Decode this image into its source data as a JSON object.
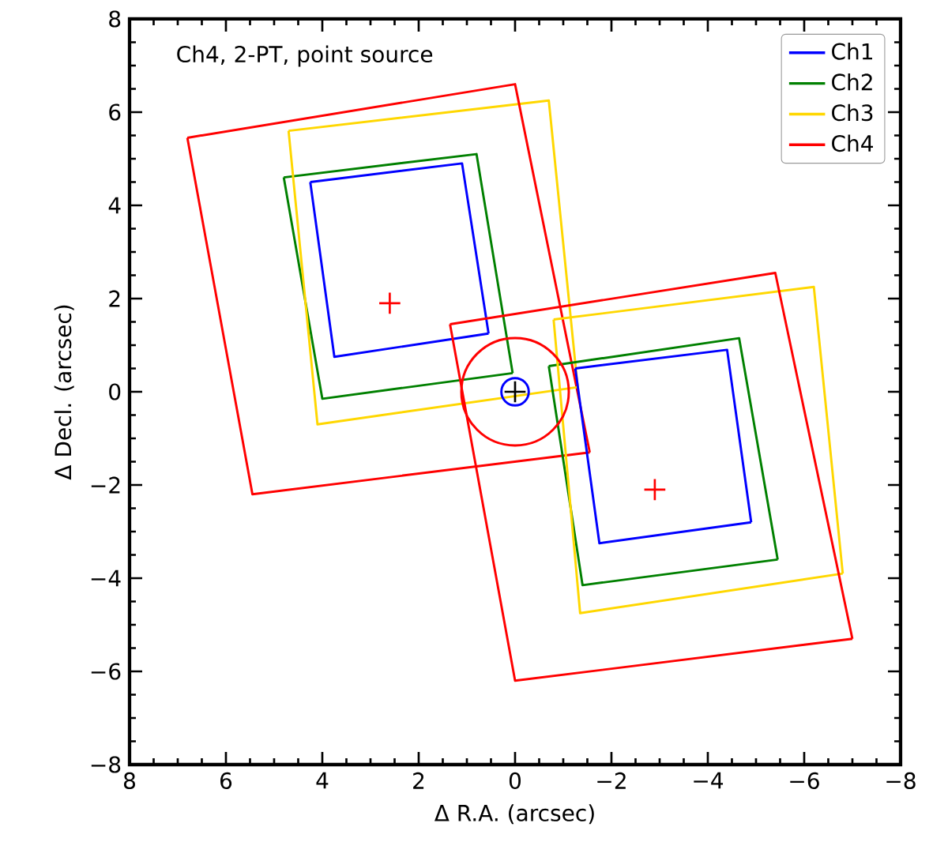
{
  "chart_data": {
    "type": "line",
    "xlabel": "Δ R.A. (arcsec)",
    "ylabel": "Δ Decl. (arcsec)",
    "xlim": [
      8,
      -8
    ],
    "ylim": [
      -8,
      8
    ],
    "xticks": [
      8,
      6,
      4,
      2,
      0,
      {
        "value": -2,
        "label": "−2"
      },
      {
        "value": -4,
        "label": "−4"
      },
      {
        "value": -6,
        "label": "−6"
      },
      {
        "value": -8,
        "label": "−8"
      }
    ],
    "yticks": [
      {
        "value": -8,
        "label": "−8"
      },
      {
        "value": -6,
        "label": "−6"
      },
      {
        "value": -4,
        "label": "−4"
      },
      {
        "value": -2,
        "label": "−2"
      },
      0,
      2,
      4,
      6,
      8
    ],
    "annotations": [
      "Ch4, 2-PT, point source"
    ],
    "legend": "top right",
    "grid": false,
    "marker": "none",
    "line_style": "solid",
    "series": [
      {
        "name": "Ch1",
        "color": "#0000ff",
        "x": [
          4.25,
          1.1,
          0.55
        ],
        "values": [
          4.5,
          4.9,
          1.25
        ]
      },
      {
        "name": "Ch2",
        "color": "#008000",
        "x": [
          4.8,
          0.8,
          0.05
        ],
        "values": [
          4.6,
          5.1,
          0.4
        ]
      },
      {
        "name": "Ch3",
        "color": "#ffd700",
        "x": [
          4.7,
          -0.7,
          -1.3
        ],
        "values": [
          5.6,
          6.25,
          0.1
        ]
      },
      {
        "name": "Ch4",
        "color": "#ff0000",
        "x": [
          6.8,
          0.0,
          -1.55
        ],
        "values": [
          5.45,
          6.6,
          -1.3
        ]
      },
      {
        "color": "#0000ff",
        "x": [
          0.55,
          3.75,
          4.25
        ],
        "values": [
          1.25,
          0.75,
          4.5
        ]
      },
      {
        "color": "#008000",
        "x": [
          0.05,
          4.0,
          4.8
        ],
        "values": [
          0.4,
          -0.15,
          4.6
        ]
      },
      {
        "color": "#ffd700",
        "x": [
          -1.3,
          4.1,
          4.7
        ],
        "values": [
          0.1,
          -0.7,
          5.6
        ]
      },
      {
        "color": "#ff0000",
        "x": [
          -1.55,
          5.45,
          6.8
        ],
        "values": [
          -1.3,
          -2.2,
          5.45
        ]
      },
      {
        "color": "#0000ff",
        "x": [
          -1.25,
          -4.4,
          -4.9
        ],
        "values": [
          0.5,
          0.9,
          -2.8
        ]
      },
      {
        "color": "#0000ff",
        "x": [
          -4.9,
          -1.75,
          -1.25
        ],
        "values": [
          -2.8,
          -3.25,
          0.5
        ]
      },
      {
        "color": "#008000",
        "x": [
          -0.7,
          -4.65,
          -5.45
        ],
        "values": [
          0.55,
          1.15,
          -3.6
        ]
      },
      {
        "color": "#008000",
        "x": [
          -5.45,
          -1.4,
          -0.7
        ],
        "values": [
          -3.6,
          -4.15,
          0.55
        ]
      },
      {
        "color": "#ffd700",
        "x": [
          -0.8,
          -6.2,
          -6.8
        ],
        "values": [
          1.55,
          2.25,
          -3.9
        ]
      },
      {
        "color": "#ffd700",
        "x": [
          -6.8,
          -1.35,
          -0.8
        ],
        "values": [
          -3.9,
          -4.75,
          1.55
        ]
      },
      {
        "color": "#ff0000",
        "x": [
          1.35,
          -5.4,
          -7.0
        ],
        "values": [
          1.45,
          2.55,
          -5.3
        ]
      },
      {
        "color": "#ff0000",
        "x": [
          -7.0,
          0.0,
          1.35
        ],
        "values": [
          -5.3,
          -6.2,
          1.45
        ]
      },
      {
        "color": "#ff0000",
        "type": "scatter",
        "marker": "cross",
        "x": [
          2.6,
          -2.9
        ],
        "values": [
          1.9,
          -2.1
        ]
      },
      {
        "color": "#0000ff",
        "type": "scatter",
        "marker": "circle",
        "x": [
          0
        ],
        "values": [
          0
        ]
      },
      {
        "color": "#000000",
        "type": "scatter",
        "marker": "cross",
        "x": [
          0
        ],
        "values": [
          0
        ]
      }
    ]
  }
}
